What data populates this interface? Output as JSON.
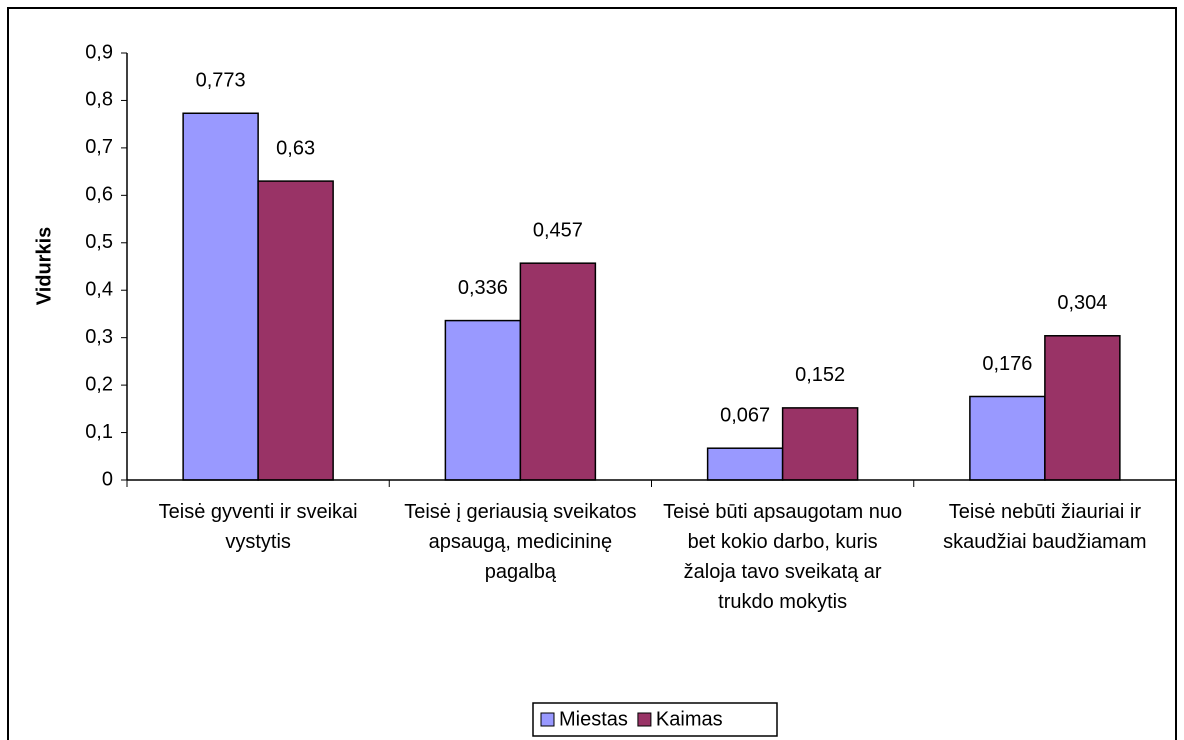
{
  "chart_data": {
    "type": "bar",
    "y_label": "Vidurkis",
    "categories": [
      "Teisė gyventi ir sveikai vystytis",
      "Teisė į geriausią sveikatos apsaugą, medicininę pagalbą",
      "Teisė būti apsaugotam nuo bet kokio darbo, kuris žaloja tavo sveikatą ar trukdo mokytis",
      "Teisė nebūti žiauriai ir skaudžiai baudžiamam"
    ],
    "series": [
      {
        "name": "Miestas",
        "color": "#9999ff",
        "values": [
          0.773,
          0.336,
          0.067,
          0.176
        ],
        "value_labels": [
          "0,773",
          "0,336",
          "0,067",
          "0,176"
        ]
      },
      {
        "name": "Kaimas",
        "color": "#993366",
        "values": [
          0.63,
          0.457,
          0.152,
          0.304
        ],
        "value_labels": [
          "0,63",
          "0,457",
          "0,152",
          "0,304"
        ]
      }
    ],
    "ylim": [
      0,
      0.9
    ],
    "yticks": [
      0,
      {
        "value": 0.1,
        "label": "0,1"
      },
      {
        "value": 0.2,
        "label": "0,2"
      },
      {
        "value": 0.3,
        "label": "0,3"
      },
      {
        "value": 0.4,
        "label": "0,4"
      },
      {
        "value": 0.5,
        "label": "0,5"
      },
      {
        "value": 0.6,
        "label": "0,6"
      },
      {
        "value": 0.7,
        "label": "0,7"
      },
      {
        "value": 0.8,
        "label": "0,8"
      },
      {
        "value": 0.9,
        "label": "0,9"
      }
    ],
    "grid": false,
    "legend": "bottom"
  }
}
